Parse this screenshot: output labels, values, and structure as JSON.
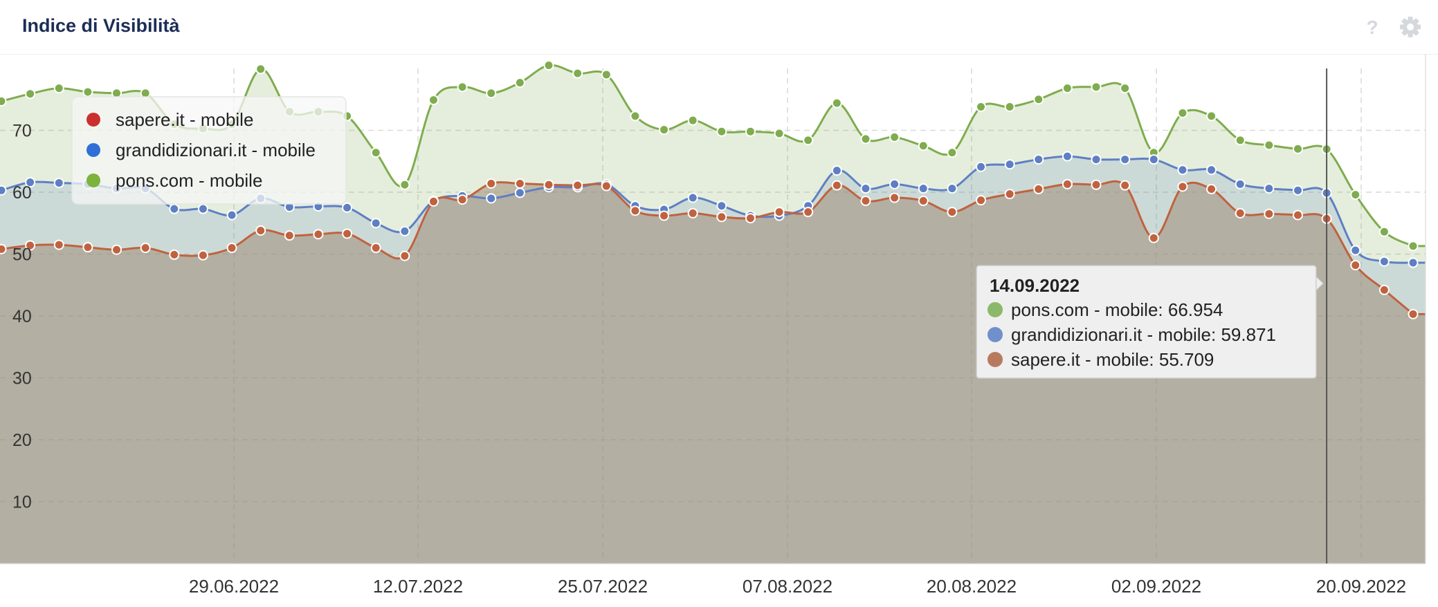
{
  "header": {
    "title": "Indice di Visibilità",
    "icons": [
      "help-icon",
      "gear-icon"
    ]
  },
  "chart_data": {
    "type": "area",
    "title": "",
    "xlabel": "",
    "ylabel": "",
    "x_tick_labels": [
      "29.06.2022",
      "12.07.2022",
      "25.07.2022",
      "07.08.2022",
      "20.08.2022",
      "02.09.2022",
      "20.09.2022"
    ],
    "y_ticks": [
      10,
      20,
      30,
      40,
      50,
      60,
      70
    ],
    "ylim": [
      0,
      80
    ],
    "grid": true,
    "legend": "top-left",
    "series": [
      {
        "name": "sapere.it - mobile",
        "color": "#c0623f",
        "values": [
          50.8,
          51.4,
          51.5,
          51.1,
          50.7,
          51.0,
          49.9,
          49.8,
          51.0,
          53.8,
          53.0,
          53.2,
          53.3,
          51.0,
          49.7,
          58.5,
          58.8,
          61.4,
          61.4,
          61.2,
          61.1,
          61.0,
          57.0,
          56.2,
          56.6,
          56.0,
          55.8,
          56.8,
          56.8,
          61.1,
          58.6,
          59.1,
          58.6,
          56.8,
          58.7,
          59.7,
          60.5,
          61.3,
          61.2,
          61.1,
          52.6,
          60.9,
          60.5,
          56.6,
          56.5,
          56.3,
          55.709,
          48.2,
          44.2,
          40.3
        ]
      },
      {
        "name": "grandidizionari.it - mobile",
        "color": "#5e7fc4",
        "values": [
          60.3,
          61.6,
          61.5,
          61.3,
          60.6,
          60.6,
          57.3,
          57.3,
          56.3,
          59.0,
          57.6,
          57.7,
          57.5,
          55.0,
          53.7,
          58.6,
          59.4,
          59.0,
          59.9,
          60.8,
          60.8,
          61.3,
          57.8,
          57.2,
          59.1,
          57.8,
          56.2,
          56.2,
          57.8,
          63.5,
          60.6,
          61.3,
          60.6,
          60.6,
          64.1,
          64.5,
          65.3,
          65.8,
          65.3,
          65.3,
          65.3,
          63.6,
          63.6,
          61.3,
          60.6,
          60.3,
          59.871,
          50.6,
          48.8,
          48.6
        ]
      },
      {
        "name": "pons.com - mobile",
        "color": "#7fac4e",
        "values": [
          74.7,
          75.9,
          76.8,
          76.2,
          76.0,
          76.0,
          71.0,
          70.3,
          71.0,
          79.9,
          73.0,
          73.0,
          72.3,
          66.4,
          61.2,
          74.9,
          77.0,
          76.0,
          77.7,
          80.5,
          79.2,
          79.0,
          72.3,
          70.1,
          71.6,
          69.8,
          69.8,
          69.5,
          68.4,
          74.4,
          68.6,
          68.9,
          67.5,
          66.4,
          73.8,
          73.8,
          75.0,
          76.8,
          77.0,
          76.8,
          66.4,
          72.8,
          72.3,
          68.4,
          67.6,
          67.0,
          66.954,
          59.6,
          53.6,
          51.3
        ]
      }
    ],
    "tooltip": {
      "date": "14.09.2022",
      "rows": [
        {
          "label": "pons.com - mobile: 66.954",
          "color": "#8cb86a"
        },
        {
          "label": "grandidizionari.it - mobile: 59.871",
          "color": "#7090cc"
        },
        {
          "label": "sapere.it - mobile: 55.709",
          "color": "#b87a5e"
        }
      ]
    },
    "legend_items": [
      {
        "label": "sapere.it - mobile",
        "color": "#cc2f2f"
      },
      {
        "label": "grandidizionari.it - mobile",
        "color": "#2f6fd6"
      },
      {
        "label": "pons.com - mobile",
        "color": "#7cb33c"
      }
    ]
  }
}
